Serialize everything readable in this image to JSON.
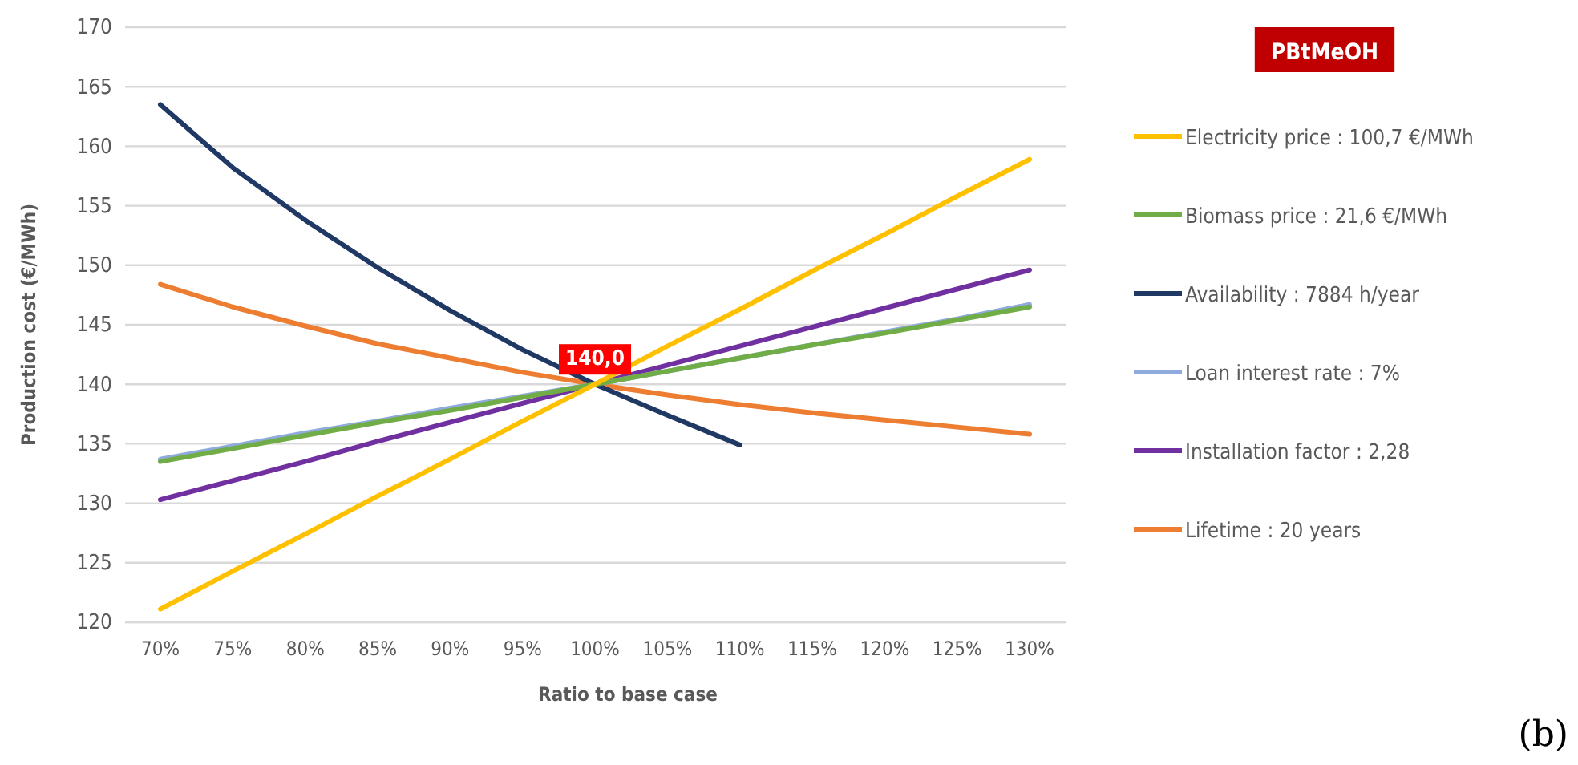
{
  "chart_data": {
    "type": "line",
    "title": "PBtMeOH",
    "xlabel": "Ratio to base case",
    "ylabel": "Production cost (€/MWh)",
    "categories": [
      "70%",
      "75%",
      "80%",
      "85%",
      "90%",
      "95%",
      "100%",
      "105%",
      "110%",
      "115%",
      "120%",
      "125%",
      "130%"
    ],
    "ylim": [
      120,
      170
    ],
    "yticks": [
      120,
      125,
      130,
      135,
      140,
      145,
      150,
      155,
      160,
      165,
      170
    ],
    "grid": "y",
    "legend": "right",
    "marker": "none",
    "line_style": "solid",
    "annotations": [
      {
        "text": "140,0",
        "x": "100%",
        "y": 140
      },
      "(b)"
    ],
    "series": [
      {
        "name": "Electricity price : 100,7 €/MWh",
        "color": "#ffc000",
        "values": [
          121.1,
          124.3,
          127.4,
          130.6,
          133.7,
          136.9,
          140.0,
          143.2,
          146.3,
          149.5,
          152.6,
          155.8,
          158.9
        ]
      },
      {
        "name": "Biomass price : 21,6 €/MWh",
        "color": "#70ad47",
        "values": [
          133.5,
          134.6,
          135.7,
          136.8,
          137.8,
          138.9,
          140.0,
          141.1,
          142.2,
          143.3,
          144.3,
          145.4,
          146.5
        ]
      },
      {
        "name": "Availability : 7884 h/year",
        "color": "#203864",
        "values": [
          163.5,
          158.2,
          153.8,
          149.8,
          146.2,
          142.9,
          140.0,
          137.4,
          134.9,
          null,
          null,
          null,
          null
        ]
      },
      {
        "name": "Loan interest rate : 7%",
        "color": "#8faadc",
        "values": [
          133.7,
          134.8,
          135.9,
          136.9,
          138.0,
          139.0,
          140.0,
          141.1,
          142.2,
          143.3,
          144.4,
          145.5,
          146.7
        ]
      },
      {
        "name": "Installation factor : 2,28",
        "color": "#7030a0",
        "values": [
          130.3,
          131.9,
          133.5,
          135.2,
          136.8,
          138.4,
          140.0,
          141.6,
          143.2,
          144.8,
          146.4,
          148.0,
          149.6
        ]
      },
      {
        "name": "Lifetime : 20 years",
        "color": "#ed7d31",
        "values": [
          148.4,
          146.5,
          144.9,
          143.4,
          142.2,
          141.0,
          140.0,
          139.1,
          138.3,
          137.6,
          137.0,
          136.4,
          135.8
        ]
      }
    ]
  }
}
